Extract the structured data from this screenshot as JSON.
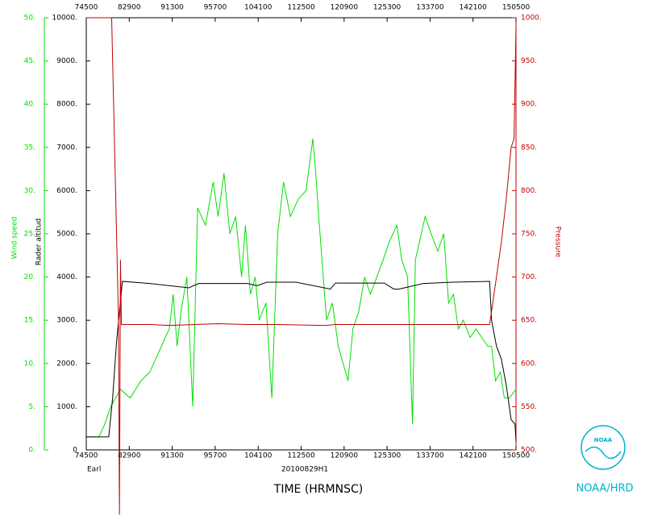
{
  "chart_data": {
    "type": "line",
    "annotation": "Earl",
    "subtitle": "20100829H1",
    "xlabel": "TIME (HRMNSC)",
    "ylabel": "Wind speed",
    "y2label": "Rader altitud",
    "y3label": "Pressure",
    "logo_text": "NOAA",
    "credit": "NOAA/HRD",
    "xlim": [
      74500,
      150500
    ],
    "xticks": [
      74500,
      82900,
      91300,
      95700,
      104100,
      112500,
      120900,
      125300,
      133700,
      142100,
      150500
    ],
    "ylim": [
      0,
      50
    ],
    "yticks": [
      {
        "value": 0,
        "label": "0."
      },
      {
        "value": 5,
        "label": "5."
      },
      {
        "value": 10,
        "label": "10."
      },
      {
        "value": 15,
        "label": "15."
      },
      {
        "value": 20,
        "label": "20."
      },
      {
        "value": 25,
        "label": "25."
      },
      {
        "value": 30,
        "label": "30."
      },
      {
        "value": 35,
        "label": "35."
      },
      {
        "value": 40,
        "label": "40."
      },
      {
        "value": 45,
        "label": "45."
      },
      {
        "value": 50,
        "label": "50."
      }
    ],
    "y2lim": [
      0,
      10000
    ],
    "y2ticks": [
      0,
      {
        "value": 1000,
        "label": "1000."
      },
      {
        "value": 2000,
        "label": "2000."
      },
      {
        "value": 3000,
        "label": "3000."
      },
      {
        "value": 4000,
        "label": "4000."
      },
      {
        "value": 5000,
        "label": "5000."
      },
      {
        "value": 6000,
        "label": "6000."
      },
      {
        "value": 7000,
        "label": "7000."
      },
      {
        "value": 8000,
        "label": "8000."
      },
      {
        "value": 9000,
        "label": "9000."
      },
      {
        "value": 10000,
        "label": "10000."
      }
    ],
    "y3lim": [
      500,
      1000
    ],
    "y3ticks": [
      {
        "value": 500,
        "label": "500."
      },
      {
        "value": 550,
        "label": "550."
      },
      {
        "value": 600,
        "label": "600."
      },
      {
        "value": 650,
        "label": "650."
      },
      {
        "value": 700,
        "label": "700."
      },
      {
        "value": 750,
        "label": "750."
      },
      {
        "value": 800,
        "label": "800."
      },
      {
        "value": 850,
        "label": "850."
      },
      {
        "value": 900,
        "label": "900."
      },
      {
        "value": 950,
        "label": "950."
      },
      {
        "value": 1000,
        "label": "1000."
      }
    ],
    "series": [
      {
        "axis": "y",
        "color": "#00e000",
        "x": [
          74500,
          75800,
          80400,
          81000,
          82000,
          83000,
          84100,
          85000,
          90200,
          91000,
          91400,
          91800,
          92200,
          92800,
          93400,
          93900,
          94700,
          95500,
          100000,
          100600,
          101200,
          101800,
          102400,
          102800,
          103300,
          103800,
          104200,
          104900,
          105500,
          110100,
          110700,
          111400,
          112200,
          113000,
          113700,
          114000,
          114300,
          115100,
          115700,
          120300,
          120800,
          121300,
          121800,
          122400,
          123000,
          123600,
          124900,
          125500,
          130300,
          130800,
          131400,
          131900,
          132200,
          132600,
          133200,
          133800,
          134500,
          135100,
          135600,
          140100,
          140600,
          141100,
          141800,
          142400,
          143000,
          143600,
          144000,
          144400,
          144900,
          145300,
          145800,
          150500
        ],
        "values": [
          1.5,
          1.5,
          3,
          5,
          7,
          6,
          8,
          9,
          12,
          14,
          18,
          12,
          16,
          20,
          5,
          28,
          26,
          31,
          27,
          32,
          25,
          27,
          20,
          26,
          18,
          20,
          15,
          17,
          6,
          25,
          31,
          27,
          29,
          30,
          36,
          32,
          27,
          15,
          17,
          12,
          10,
          8,
          14,
          16,
          20,
          18,
          22,
          24,
          26,
          22,
          20,
          3,
          22,
          24,
          27,
          25,
          23,
          25,
          17,
          18,
          14,
          15,
          13,
          14,
          13,
          12,
          12,
          8,
          9,
          6,
          6,
          7
        ]
      },
      {
        "axis": "y2",
        "color": "#000000",
        "x": [
          74500,
          80800,
          81200,
          81600,
          82200,
          85000,
          93000,
          94000,
          100000,
          103000,
          104000,
          105000,
          112000,
          115500,
          120000,
          125000,
          130000,
          130500,
          133000,
          140000,
          143800,
          144000,
          144500,
          145000,
          145500,
          150000,
          150400,
          150500
        ],
        "values": [
          300,
          300,
          1200,
          2500,
          3900,
          3850,
          3750,
          3850,
          3850,
          3850,
          3800,
          3880,
          3880,
          3720,
          3860,
          3860,
          3720,
          3720,
          3850,
          3880,
          3900,
          3000,
          2400,
          2100,
          1500,
          700,
          600,
          200
        ]
      },
      {
        "axis": "y3",
        "color": "#c00000",
        "x": [
          74500,
          81100,
          81800,
          81900,
          82000,
          82100,
          85000,
          91000,
          100000,
          103000,
          110000,
          115000,
          120000,
          125000,
          130000,
          135000,
          143800,
          144500,
          145000,
          145500,
          150000,
          150300,
          150500
        ],
        "values": [
          1000,
          1000,
          650,
          425,
          720,
          645,
          645,
          644,
          646,
          645,
          645,
          644,
          645,
          645,
          645,
          645,
          645,
          700,
          740,
          790,
          850,
          860,
          990
        ]
      }
    ]
  }
}
